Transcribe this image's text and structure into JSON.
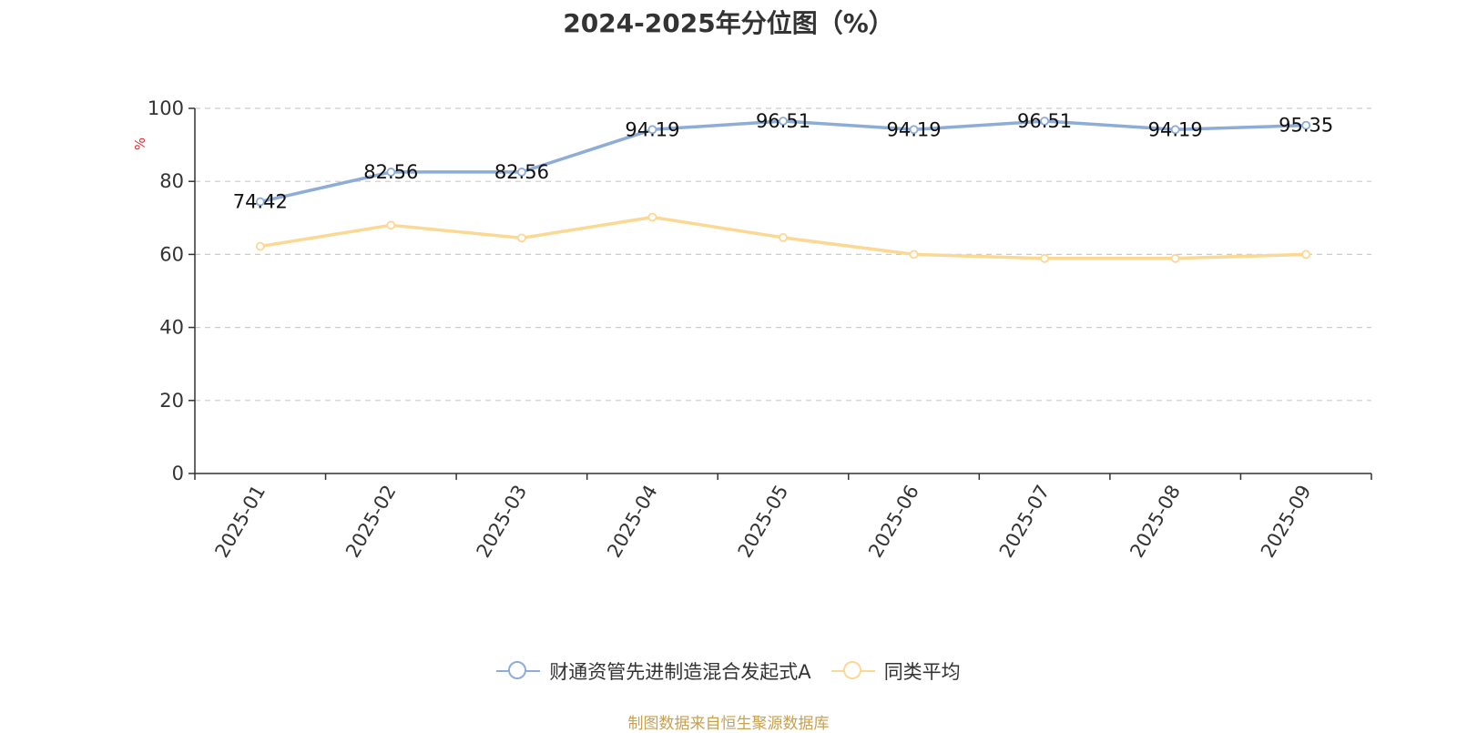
{
  "chart_data": {
    "type": "line",
    "title": "2024-2025年分位图（%）",
    "ylabel": "%",
    "xlabel": "",
    "ylim": [
      0,
      100
    ],
    "yticks": [
      0,
      20,
      40,
      60,
      80,
      100
    ],
    "categories": [
      "2025-01",
      "2025-02",
      "2025-03",
      "2025-04",
      "2025-05",
      "2025-06",
      "2025-07",
      "2025-08",
      "2025-09"
    ],
    "series": [
      {
        "name": "财通资管先进制造混合发起式A",
        "color": "#8eacd8",
        "values": [
          74.42,
          82.56,
          82.56,
          94.19,
          96.51,
          94.19,
          96.51,
          94.19,
          95.35
        ],
        "data_labels": [
          "74.42",
          "82.56",
          "82.56",
          "94.19",
          "96.51",
          "94.19",
          "96.51",
          "94.19",
          "95.35"
        ]
      },
      {
        "name": "同类平均",
        "color": "#fbd893",
        "values": [
          62.2,
          68.0,
          64.5,
          70.2,
          64.6,
          60.0,
          58.9,
          58.9,
          60.0
        ]
      }
    ],
    "grid": true,
    "legend_position": "bottom-center",
    "source_text": "制图数据来自恒生聚源数据库"
  }
}
